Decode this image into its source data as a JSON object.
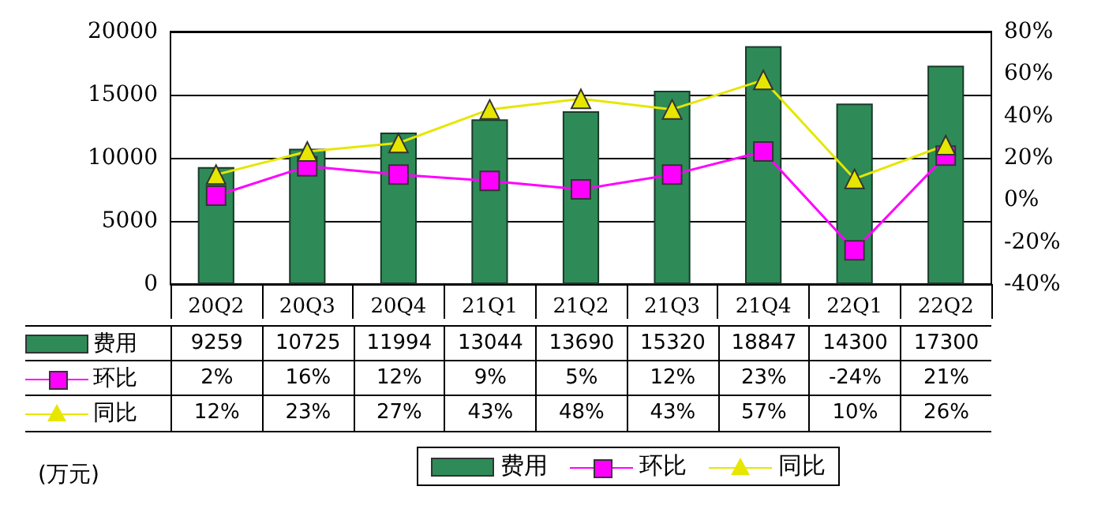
{
  "chart_data": {
    "type": "bar",
    "categories": [
      "20Q2",
      "20Q3",
      "20Q4",
      "21Q1",
      "21Q2",
      "21Q3",
      "21Q4",
      "22Q1",
      "22Q2"
    ],
    "series": [
      {
        "name": "费用",
        "color": "#2e8b57",
        "values": [
          9259,
          10725,
          11994,
          13044,
          13690,
          15320,
          18847,
          14300,
          17300
        ],
        "value_labels": [
          "9259",
          "10725",
          "11994",
          "13044",
          "13690",
          "15320",
          "18847",
          "14300",
          "17300"
        ]
      },
      {
        "name": "环比",
        "type": "line",
        "axis": "y2",
        "marker": "square",
        "color": "#ff00ff",
        "values": [
          2,
          16,
          12,
          9,
          5,
          12,
          23,
          -24,
          21
        ],
        "value_labels": [
          "2%",
          "16%",
          "12%",
          "9%",
          "5%",
          "12%",
          "23%",
          "-24%",
          "21%"
        ]
      },
      {
        "name": "同比",
        "type": "line",
        "axis": "y2",
        "marker": "triangle",
        "color": "#e6e600",
        "values": [
          12,
          23,
          27,
          43,
          48,
          43,
          57,
          10,
          26
        ],
        "value_labels": [
          "12%",
          "23%",
          "27%",
          "43%",
          "48%",
          "43%",
          "57%",
          "10%",
          "26%"
        ]
      }
    ],
    "ylim": [
      0,
      20000
    ],
    "yticks": [
      0,
      5000,
      10000,
      15000,
      20000
    ],
    "y2lim": [
      -40,
      80
    ],
    "y2ticks": [
      {
        "value": -40,
        "label": "-40%"
      },
      {
        "value": -20,
        "label": "-20%"
      },
      {
        "value": 0,
        "label": "0%"
      },
      {
        "value": 20,
        "label": "20%"
      },
      {
        "value": 40,
        "label": "40%"
      },
      {
        "value": 60,
        "label": "60%"
      },
      {
        "value": 80,
        "label": "80%"
      }
    ],
    "grid": "y",
    "legend": "bottom",
    "annotations": [
      "(万元)"
    ]
  }
}
